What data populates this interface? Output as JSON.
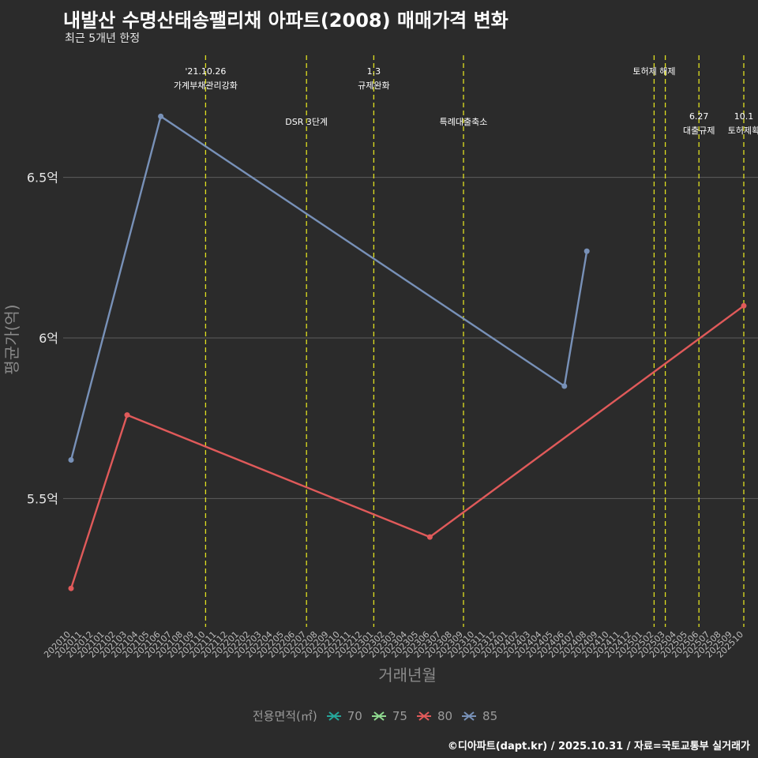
{
  "chart_data": {
    "type": "line",
    "title": "내발산 수명산태송팰리채 아파트(2008) 매매가격 변화",
    "subtitle": "최근 5개년 한정",
    "xlabel": "거래년월",
    "ylabel": "평균가(억)",
    "caption": "©디아파트(dapt.kr) / 2025.10.31 / 자료=국토교통부 실거래가",
    "categories": [
      "202010",
      "202011",
      "202012",
      "202101",
      "202102",
      "202103",
      "202104",
      "202105",
      "202106",
      "202107",
      "202108",
      "202109",
      "202110",
      "202111",
      "202112",
      "202201",
      "202202",
      "202203",
      "202204",
      "202205",
      "202206",
      "202207",
      "202208",
      "202209",
      "202210",
      "202211",
      "202212",
      "202301",
      "202302",
      "202303",
      "202304",
      "202305",
      "202306",
      "202307",
      "202308",
      "202309",
      "202310",
      "202311",
      "202312",
      "202401",
      "202402",
      "202403",
      "202404",
      "202405",
      "202406",
      "202407",
      "202408",
      "202409",
      "202410",
      "202411",
      "202412",
      "202501",
      "202502",
      "202503",
      "202504",
      "202505",
      "202506",
      "202507",
      "202508",
      "202509",
      "202510"
    ],
    "yticks": [
      {
        "value": 5.5,
        "label": "5.5억"
      },
      {
        "value": 6.0,
        "label": "6억"
      },
      {
        "value": 6.5,
        "label": "6.5억"
      }
    ],
    "ylim": [
      5.1,
      6.89
    ],
    "legend_title": "전용면적(㎡)",
    "legend": [
      {
        "name": "70",
        "color": "#26a69a"
      },
      {
        "name": "75",
        "color": "#8fd98f"
      },
      {
        "name": "80",
        "color": "#e05a5a"
      },
      {
        "name": "85",
        "color": "#7891b8"
      }
    ],
    "series": [
      {
        "name": "80",
        "color": "#e05a5a",
        "points": [
          [
            "202010",
            5.22
          ],
          [
            "202103",
            5.76
          ],
          [
            "202306",
            5.38
          ],
          [
            "202510",
            6.1
          ]
        ]
      },
      {
        "name": "85",
        "color": "#7891b8",
        "points": [
          [
            "202010",
            5.62
          ],
          [
            "202106",
            6.69
          ],
          [
            "202406",
            5.85
          ],
          [
            "202408",
            6.27
          ]
        ]
      }
    ],
    "annotations": [
      {
        "x": "202110",
        "lines": [
          "'21.10.26",
          "가계부채관리강화"
        ],
        "row": 0
      },
      {
        "x": "202207",
        "lines": [
          "DSR 3단계"
        ],
        "row": 1
      },
      {
        "x": "202301",
        "lines": [
          "1.3",
          "규제완화"
        ],
        "row": 0
      },
      {
        "x": "202309",
        "lines": [
          "특례대출축소"
        ],
        "row": 1
      },
      {
        "x": "202502",
        "lines": [
          "토허제 해제"
        ],
        "row": 0
      },
      {
        "x": "202503",
        "lines": [],
        "row": 0
      },
      {
        "x": "202506",
        "lines": [
          "6.27",
          "대출규제"
        ],
        "row": 2
      },
      {
        "x": "202510",
        "lines": [
          "10.1",
          "토허제확"
        ],
        "row": 2
      }
    ]
  }
}
